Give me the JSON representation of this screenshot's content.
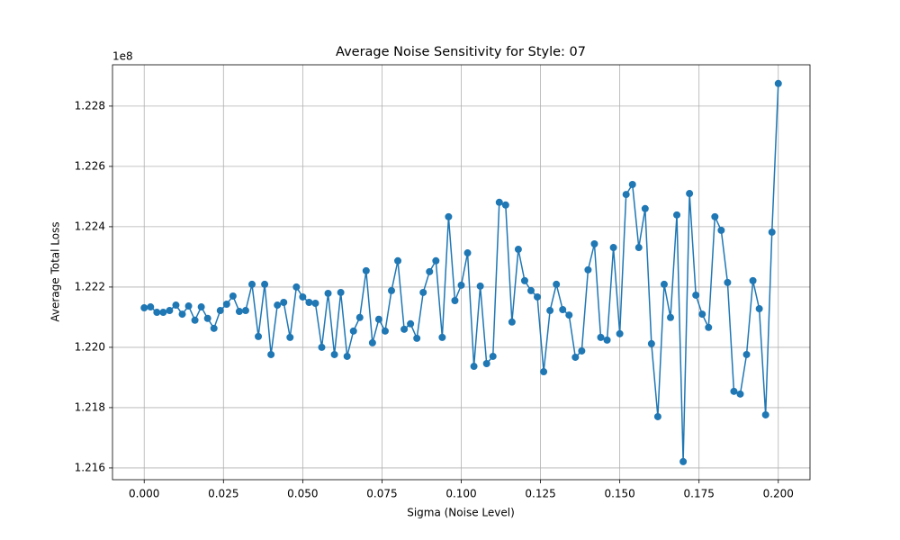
{
  "chart_data": {
    "type": "line",
    "title": "Average Noise Sensitivity for Style: 07",
    "x_label": "Sigma (Noise Level)",
    "y_label": "Average Total Loss",
    "y_offset_label": "1e8",
    "grid": true,
    "marker": "circle",
    "x": [
      0,
      0.002,
      0.004,
      0.006,
      0.008,
      0.01,
      0.012,
      0.014,
      0.016,
      0.018,
      0.02,
      0.022,
      0.024,
      0.026,
      0.028,
      0.03,
      0.032,
      0.034,
      0.036,
      0.038,
      0.04,
      0.042,
      0.044,
      0.046,
      0.048,
      0.05,
      0.052,
      0.054,
      0.056,
      0.058,
      0.06,
      0.062,
      0.064,
      0.066,
      0.068,
      0.07,
      0.072,
      0.074,
      0.076,
      0.078,
      0.08,
      0.082,
      0.084,
      0.086,
      0.088,
      0.09,
      0.092,
      0.094,
      0.096,
      0.098,
      0.1,
      0.102,
      0.104,
      0.106,
      0.108,
      0.11,
      0.112,
      0.114,
      0.116,
      0.118,
      0.12,
      0.122,
      0.124,
      0.126,
      0.128,
      0.13,
      0.132,
      0.134,
      0.136,
      0.138,
      0.14,
      0.142,
      0.144,
      0.146,
      0.148,
      0.15,
      0.152,
      0.154,
      0.156,
      0.158,
      0.16,
      0.162,
      0.164,
      0.166,
      0.168,
      0.17,
      0.172,
      0.174,
      0.176,
      0.178,
      0.18,
      0.182,
      0.184,
      0.186,
      0.188,
      0.19,
      0.192,
      0.194,
      0.196,
      0.198,
      0.2
    ],
    "series": [
      {
        "color": "#1f77b4",
        "values": [
          122131000,
          122134000,
          122116000,
          122116000,
          122122000,
          122140000,
          122110000,
          122137000,
          122090000,
          122134000,
          122096000,
          122063000,
          122122000,
          122143000,
          122170000,
          122119000,
          122122000,
          122209000,
          122036000,
          122209000,
          121976000,
          122140000,
          122149000,
          122033000,
          122200000,
          122167000,
          122149000,
          122146000,
          122000000,
          122179000,
          121976000,
          122182000,
          121970000,
          122054000,
          122099000,
          122254000,
          122015000,
          122093000,
          122054000,
          122188000,
          122287000,
          122060000,
          122078000,
          122030000,
          122182000,
          122251000,
          122287000,
          122033000,
          122433000,
          122155000,
          122206000,
          122313000,
          121937000,
          122203000,
          121946000,
          121970000,
          122481000,
          122472000,
          122084000,
          122325000,
          122221000,
          122188000,
          122167000,
          121919000,
          122122000,
          122209000,
          122125000,
          122107000,
          121967000,
          121988000,
          122257000,
          122343000,
          122033000,
          122024000,
          122331000,
          122045000,
          122507000,
          122540000,
          122331000,
          122460000,
          122012000,
          121770000,
          122209000,
          122099000,
          122439000,
          121621000,
          122510000,
          122173000,
          122110000,
          122066000,
          122433000,
          122388000,
          122215000,
          121854000,
          121845000,
          121976000,
          122221000,
          122128000,
          121776000,
          122382000,
          122875000
        ]
      }
    ],
    "xlim": [
      -0.01,
      0.21
    ],
    "ylim": [
      121561000,
      122937000
    ],
    "xticks": [
      {
        "value": 0,
        "label": "0.000"
      },
      {
        "value": 0.025,
        "label": "0.025"
      },
      {
        "value": 0.05,
        "label": "0.050"
      },
      {
        "value": 0.075,
        "label": "0.075"
      },
      {
        "value": 0.1,
        "label": "0.100"
      },
      {
        "value": 0.125,
        "label": "0.125"
      },
      {
        "value": 0.15,
        "label": "0.150"
      },
      {
        "value": 0.175,
        "label": "0.175"
      },
      {
        "value": 0.2,
        "label": "0.200"
      }
    ],
    "yticks": [
      {
        "value": 121600000,
        "label": "1.216"
      },
      {
        "value": 121800000,
        "label": "1.218"
      },
      {
        "value": 122000000,
        "label": "1.220"
      },
      {
        "value": 122200000,
        "label": "1.222"
      },
      {
        "value": 122400000,
        "label": "1.224"
      },
      {
        "value": 122600000,
        "label": "1.226"
      },
      {
        "value": 122800000,
        "label": "1.228"
      }
    ]
  }
}
